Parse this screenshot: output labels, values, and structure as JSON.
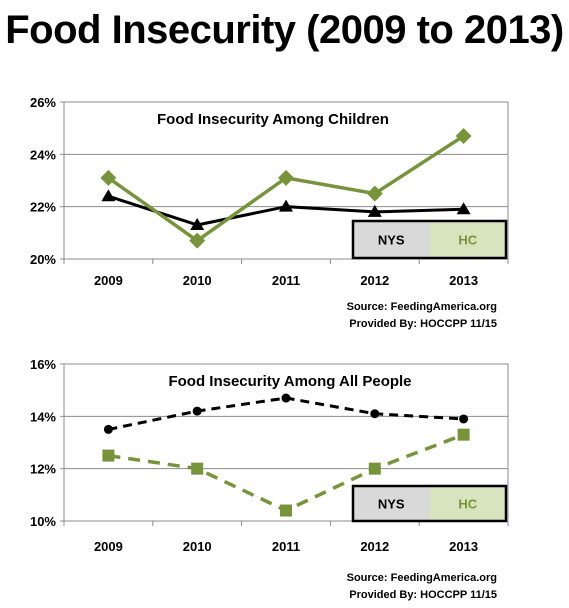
{
  "page_title": "Food Insecurity (2009 to 2013)",
  "colors": {
    "nys": "#000000",
    "hc": "#77933c",
    "legend_nys_bg": "#d9d9d9",
    "legend_hc_bg": "#d7e4bd"
  },
  "chart_data": [
    {
      "type": "line",
      "title": "Food Insecurity Among Children",
      "categories": [
        "2009",
        "2010",
        "2011",
        "2012",
        "2013"
      ],
      "series": [
        {
          "name": "NYS",
          "values": [
            22.4,
            21.3,
            22.0,
            21.8,
            21.9
          ],
          "marker": "triangle",
          "dashed": false,
          "color": "#000000"
        },
        {
          "name": "HC",
          "values": [
            23.1,
            20.7,
            23.1,
            22.5,
            24.7
          ],
          "marker": "diamond",
          "dashed": false,
          "color": "#77933c"
        }
      ],
      "ylim": [
        20,
        26
      ],
      "yticks": [
        20,
        22,
        24,
        26
      ],
      "ytick_labels": [
        "20%",
        "22%",
        "24%",
        "26%"
      ],
      "legend_position": "bottom-right",
      "grid": true,
      "source": "Source: FeedingAmerica.org",
      "provided_by": "Provided By: HOCCPP 11/15"
    },
    {
      "type": "line",
      "title": "Food Insecurity Among All People",
      "categories": [
        "2009",
        "2010",
        "2011",
        "2012",
        "2013"
      ],
      "series": [
        {
          "name": "NYS",
          "values": [
            13.5,
            14.2,
            14.7,
            14.1,
            13.9
          ],
          "marker": "circle",
          "dashed": true,
          "color": "#000000"
        },
        {
          "name": "HC",
          "values": [
            12.5,
            12.0,
            10.4,
            12.0,
            13.3
          ],
          "marker": "square",
          "dashed": true,
          "color": "#77933c"
        }
      ],
      "ylim": [
        10,
        16
      ],
      "yticks": [
        10,
        12,
        14,
        16
      ],
      "ytick_labels": [
        "10%",
        "12%",
        "14%",
        "16%"
      ],
      "legend_position": "bottom-right",
      "grid": true,
      "source": "Source: FeedingAmerica.org",
      "provided_by": "Provided By: HOCCPP 11/15"
    }
  ]
}
